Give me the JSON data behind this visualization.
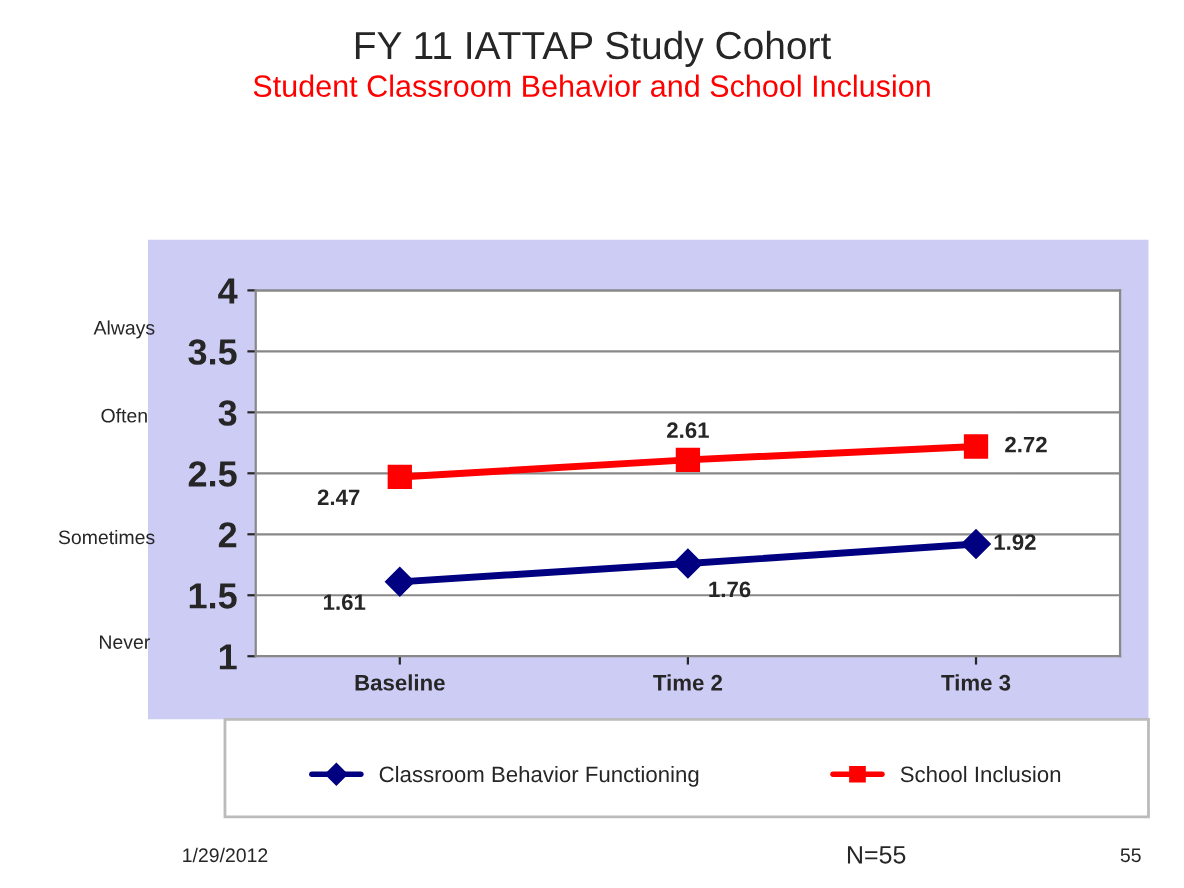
{
  "chart_data": {
    "type": "line",
    "title": "FY 11 IATTAP Study Cohort",
    "subtitle": "Student Classroom Behavior and School Inclusion",
    "categories": [
      "Baseline",
      "Time 2",
      "Time 3"
    ],
    "series": [
      {
        "name": "Classroom Behavior Functioning",
        "color": "#000080",
        "marker": "diamond",
        "values": [
          1.61,
          1.76,
          1.92
        ]
      },
      {
        "name": "School Inclusion",
        "color": "#ff0000",
        "marker": "square",
        "values": [
          2.47,
          2.61,
          2.72
        ]
      }
    ],
    "ylim": [
      1,
      4
    ],
    "yticks": [
      1,
      1.5,
      2,
      2.5,
      3,
      3.5,
      4
    ],
    "grid": "y",
    "legend": "bottom",
    "data_labels": true,
    "annotations": [
      "Always",
      "Often",
      "Sometimes",
      "Never",
      "1/29/2012",
      "N=55",
      "55"
    ]
  }
}
